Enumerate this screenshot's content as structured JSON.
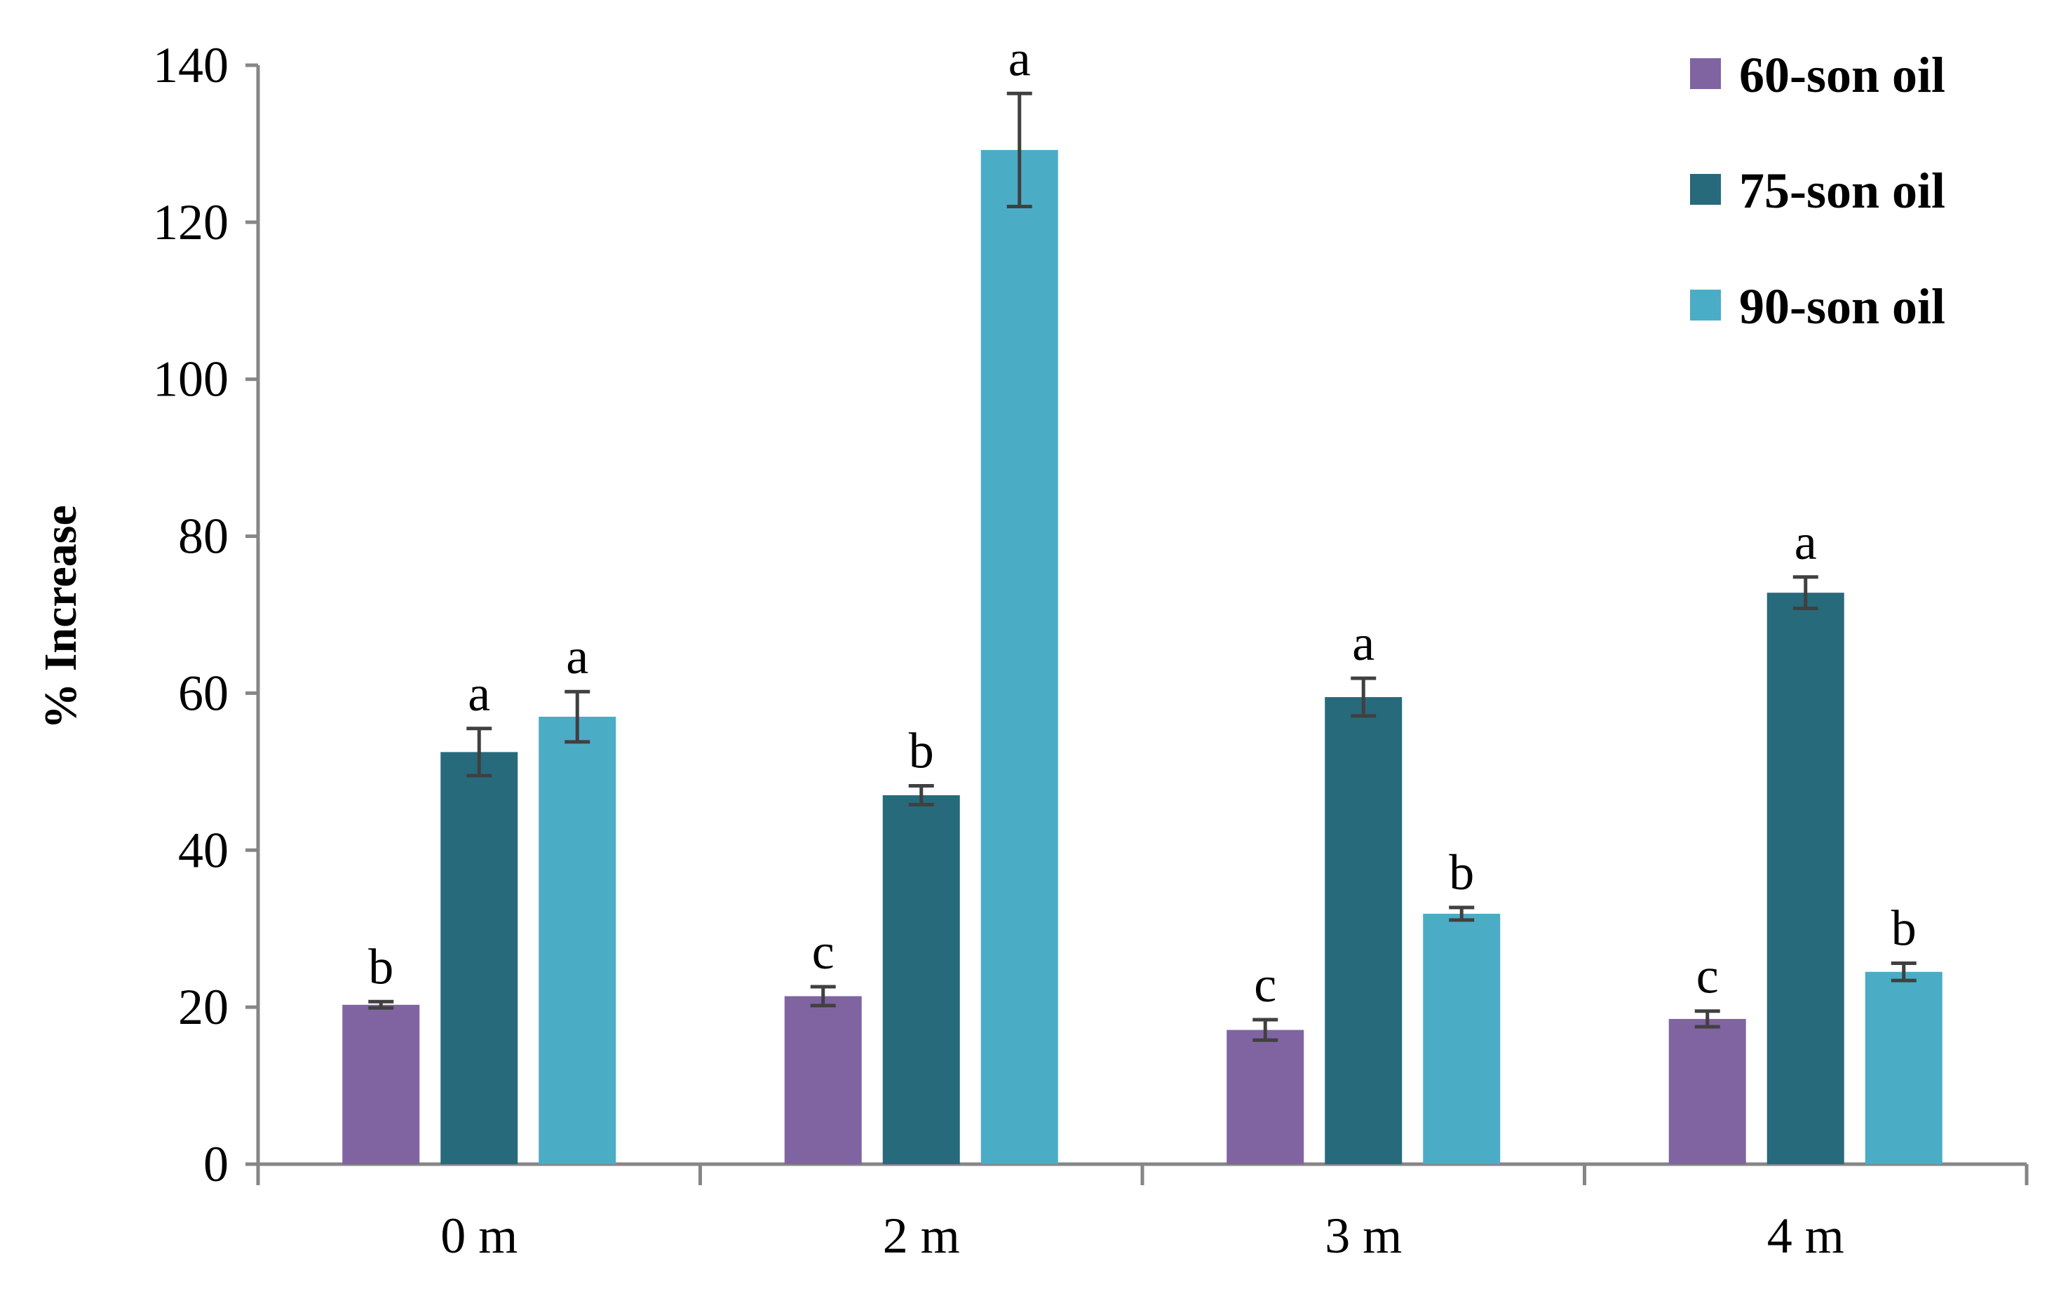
{
  "chart_data": {
    "type": "bar",
    "title": "",
    "xlabel": "",
    "ylabel": "% Increase",
    "ylim": [
      0,
      140
    ],
    "yticks": [
      0,
      20,
      40,
      60,
      80,
      100,
      120,
      140
    ],
    "categories": [
      "0 m",
      "2 m",
      "3 m",
      "4 m"
    ],
    "grid": false,
    "legend_position": "top-right",
    "series": [
      {
        "name": "60-son oil",
        "color": "#8064A2",
        "values": [
          20.3,
          21.4,
          17.1,
          18.5
        ],
        "errors": [
          0.4,
          1.2,
          1.3,
          1.0
        ],
        "significance": [
          "b",
          "c",
          "c",
          "c"
        ]
      },
      {
        "name": "75-son oil",
        "color": "#276A7C",
        "values": [
          52.5,
          47.0,
          59.5,
          72.8
        ],
        "errors": [
          3.0,
          1.2,
          2.4,
          2.0
        ],
        "significance": [
          "a",
          "b",
          "a",
          "a"
        ]
      },
      {
        "name": "90-son oil",
        "color": "#4BACC6",
        "values": [
          57.0,
          129.2,
          31.9,
          24.5
        ],
        "errors": [
          3.2,
          7.2,
          0.8,
          1.1
        ],
        "significance": [
          "a",
          "a",
          "b",
          "b"
        ]
      }
    ]
  }
}
